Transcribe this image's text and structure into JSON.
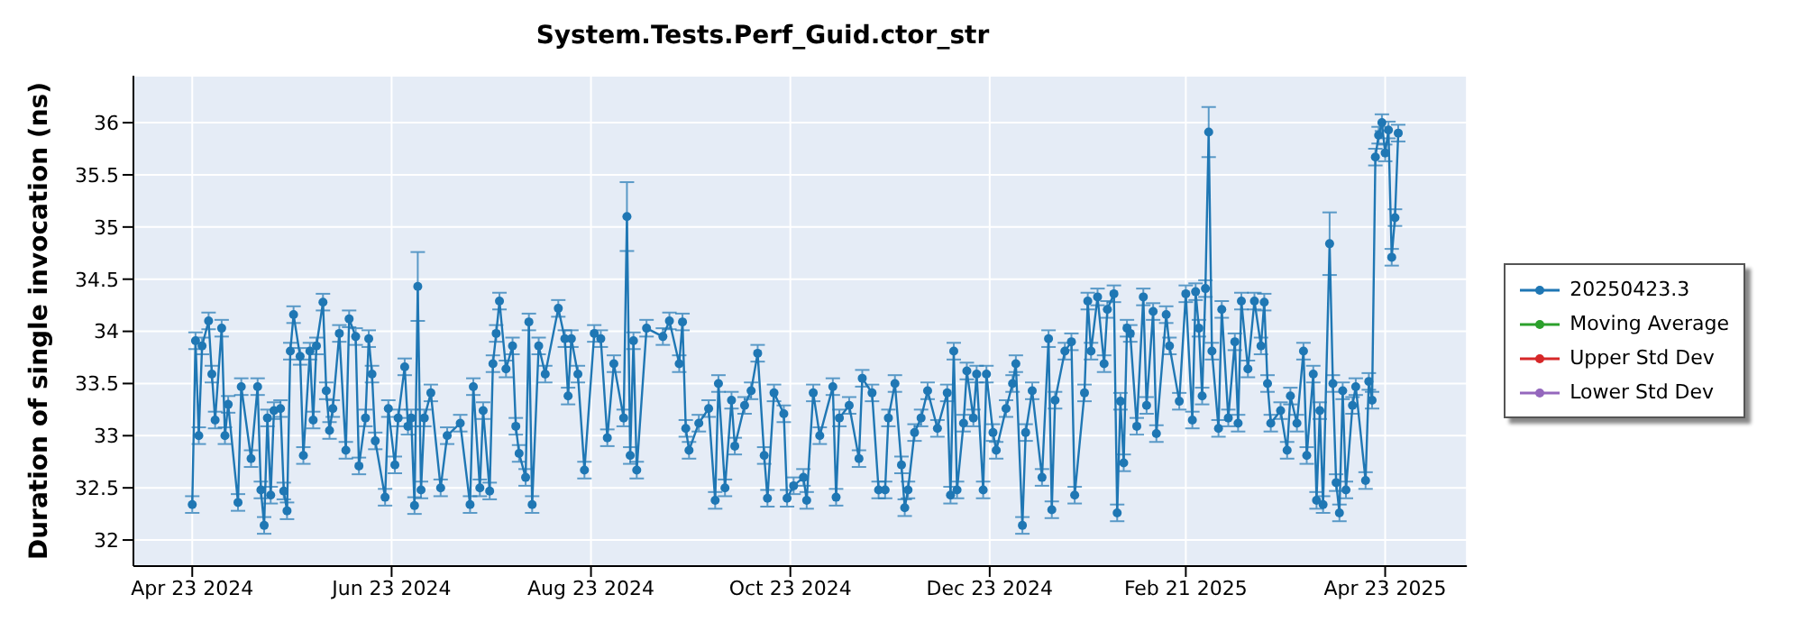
{
  "chart_data": {
    "type": "line",
    "title": "System.Tests.Perf_Guid.ctor_str",
    "ylabel": "Duration of single invocation (ns)",
    "x": [
      "2024-04-23",
      "2024-04-24",
      "2024-04-25",
      "2024-04-26",
      "2024-04-28",
      "2024-04-29",
      "2024-04-30",
      "2024-05-02",
      "2024-05-03",
      "2024-05-04",
      "2024-05-07",
      "2024-05-08",
      "2024-05-11",
      "2024-05-13",
      "2024-05-14",
      "2024-05-15",
      "2024-05-16",
      "2024-05-17",
      "2024-05-18",
      "2024-05-20",
      "2024-05-21",
      "2024-05-22",
      "2024-05-23",
      "2024-05-24",
      "2024-05-26",
      "2024-05-27",
      "2024-05-29",
      "2024-05-30",
      "2024-05-31",
      "2024-06-02",
      "2024-06-03",
      "2024-06-04",
      "2024-06-05",
      "2024-06-07",
      "2024-06-09",
      "2024-06-10",
      "2024-06-12",
      "2024-06-13",
      "2024-06-15",
      "2024-06-16",
      "2024-06-17",
      "2024-06-18",
      "2024-06-21",
      "2024-06-22",
      "2024-06-24",
      "2024-06-25",
      "2024-06-27",
      "2024-06-28",
      "2024-06-29",
      "2024-06-30",
      "2024-07-01",
      "2024-07-02",
      "2024-07-03",
      "2024-07-05",
      "2024-07-08",
      "2024-07-10",
      "2024-07-14",
      "2024-07-17",
      "2024-07-18",
      "2024-07-20",
      "2024-07-21",
      "2024-07-23",
      "2024-07-24",
      "2024-07-25",
      "2024-07-26",
      "2024-07-28",
      "2024-07-30",
      "2024-07-31",
      "2024-08-01",
      "2024-08-03",
      "2024-08-04",
      "2024-08-05",
      "2024-08-07",
      "2024-08-09",
      "2024-08-13",
      "2024-08-15",
      "2024-08-16",
      "2024-08-17",
      "2024-08-19",
      "2024-08-21",
      "2024-08-24",
      "2024-08-26",
      "2024-08-28",
      "2024-08-30",
      "2024-09-02",
      "2024-09-03",
      "2024-09-04",
      "2024-09-05",
      "2024-09-06",
      "2024-09-09",
      "2024-09-14",
      "2024-09-16",
      "2024-09-19",
      "2024-09-20",
      "2024-09-21",
      "2024-09-22",
      "2024-09-25",
      "2024-09-28",
      "2024-09-30",
      "2024-10-01",
      "2024-10-03",
      "2024-10-05",
      "2024-10-06",
      "2024-10-09",
      "2024-10-11",
      "2024-10-13",
      "2024-10-15",
      "2024-10-16",
      "2024-10-18",
      "2024-10-21",
      "2024-10-22",
      "2024-10-24",
      "2024-10-27",
      "2024-10-28",
      "2024-10-30",
      "2024-11-01",
      "2024-11-05",
      "2024-11-06",
      "2024-11-07",
      "2024-11-10",
      "2024-11-13",
      "2024-11-14",
      "2024-11-17",
      "2024-11-19",
      "2024-11-21",
      "2024-11-22",
      "2024-11-24",
      "2024-11-26",
      "2024-11-27",
      "2024-11-28",
      "2024-11-30",
      "2024-12-02",
      "2024-12-04",
      "2024-12-07",
      "2024-12-10",
      "2024-12-11",
      "2024-12-12",
      "2024-12-13",
      "2024-12-15",
      "2024-12-16",
      "2024-12-18",
      "2024-12-19",
      "2024-12-21",
      "2024-12-22",
      "2024-12-24",
      "2024-12-25",
      "2024-12-28",
      "2024-12-30",
      "2024-12-31",
      "2025-01-02",
      "2025-01-03",
      "2025-01-05",
      "2025-01-08",
      "2025-01-10",
      "2025-01-11",
      "2025-01-12",
      "2025-01-15",
      "2025-01-17",
      "2025-01-18",
      "2025-01-21",
      "2025-01-22",
      "2025-01-23",
      "2025-01-25",
      "2025-01-27",
      "2025-01-28",
      "2025-01-30",
      "2025-01-31",
      "2025-02-01",
      "2025-02-02",
      "2025-02-03",
      "2025-02-04",
      "2025-02-06",
      "2025-02-08",
      "2025-02-09",
      "2025-02-11",
      "2025-02-12",
      "2025-02-15",
      "2025-02-16",
      "2025-02-19",
      "2025-02-21",
      "2025-02-23",
      "2025-02-24",
      "2025-02-25",
      "2025-02-26",
      "2025-02-27",
      "2025-02-28",
      "2025-03-01",
      "2025-03-03",
      "2025-03-04",
      "2025-03-06",
      "2025-03-08",
      "2025-03-09",
      "2025-03-10",
      "2025-03-12",
      "2025-03-14",
      "2025-03-16",
      "2025-03-17",
      "2025-03-18",
      "2025-03-19",
      "2025-03-22",
      "2025-03-24",
      "2025-03-25",
      "2025-03-27",
      "2025-03-29",
      "2025-03-30",
      "2025-04-01",
      "2025-04-02",
      "2025-04-03",
      "2025-04-04",
      "2025-04-06",
      "2025-04-07",
      "2025-04-08",
      "2025-04-09",
      "2025-04-10",
      "2025-04-11",
      "2025-04-13",
      "2025-04-14",
      "2025-04-17",
      "2025-04-18",
      "2025-04-19",
      "2025-04-20",
      "2025-04-21",
      "2025-04-22",
      "2025-04-23",
      "2025-04-24",
      "2025-04-25",
      "2025-04-26",
      "2025-04-27"
    ],
    "series": [
      {
        "name": "20250423.3",
        "color": "#1f77b4",
        "values": [
          32.34,
          33.91,
          33.0,
          33.86,
          34.1,
          33.59,
          33.15,
          34.03,
          33.0,
          33.3,
          32.36,
          33.47,
          32.78,
          33.47,
          32.48,
          32.14,
          33.17,
          32.43,
          33.24,
          33.26,
          32.47,
          32.28,
          33.81,
          34.16,
          33.76,
          32.81,
          33.81,
          33.15,
          33.86,
          34.28,
          33.43,
          33.05,
          33.26,
          33.98,
          32.86,
          34.12,
          33.95,
          32.71,
          33.17,
          33.93,
          33.59,
          32.95,
          32.41,
          33.26,
          32.72,
          33.17,
          33.66,
          33.09,
          33.17,
          32.33,
          34.43,
          32.48,
          33.17,
          33.41,
          32.5,
          33.0,
          33.12,
          32.34,
          33.47,
          32.5,
          33.24,
          32.47,
          33.69,
          33.98,
          34.29,
          33.64,
          33.86,
          33.09,
          32.83,
          32.6,
          34.09,
          32.34,
          33.86,
          33.59,
          34.22,
          33.93,
          33.38,
          33.93,
          33.59,
          32.67,
          33.98,
          33.93,
          32.98,
          33.69,
          33.17,
          35.1,
          32.81,
          33.91,
          32.67,
          34.03,
          33.95,
          34.1,
          33.69,
          34.09,
          33.07,
          32.86,
          33.12,
          33.26,
          32.38,
          33.5,
          32.5,
          33.34,
          32.9,
          33.29,
          33.43,
          33.79,
          32.81,
          32.4,
          33.41,
          33.21,
          32.4,
          32.52,
          32.6,
          32.38,
          33.41,
          33.0,
          33.47,
          32.41,
          33.17,
          33.29,
          32.78,
          33.55,
          33.41,
          32.48,
          32.48,
          33.17,
          33.5,
          32.72,
          32.31,
          32.48,
          33.03,
          33.17,
          33.43,
          33.07,
          33.41,
          32.43,
          33.81,
          32.48,
          33.12,
          33.62,
          33.17,
          33.59,
          32.48,
          33.59,
          33.03,
          32.86,
          33.26,
          33.5,
          33.69,
          32.14,
          33.03,
          33.43,
          32.6,
          33.93,
          32.29,
          33.34,
          33.81,
          33.9,
          32.43,
          33.41,
          34.29,
          33.81,
          34.33,
          33.69,
          34.21,
          34.36,
          32.26,
          33.33,
          32.74,
          34.03,
          33.98,
          33.09,
          34.33,
          33.29,
          34.19,
          33.02,
          34.16,
          33.86,
          33.33,
          34.36,
          33.15,
          34.38,
          34.03,
          33.38,
          34.41,
          35.91,
          33.81,
          33.07,
          34.21,
          33.17,
          33.9,
          33.12,
          34.29,
          33.64,
          34.29,
          33.86,
          34.28,
          33.5,
          33.12,
          33.24,
          32.86,
          33.38,
          33.12,
          33.81,
          32.81,
          33.59,
          32.38,
          33.24,
          32.34,
          34.84,
          33.5,
          32.55,
          32.26,
          33.43,
          32.48,
          33.29,
          33.47,
          32.57,
          33.52,
          33.34,
          35.67,
          35.88,
          36.0,
          35.71,
          35.93,
          34.71,
          35.09,
          35.9
        ],
        "errors": [
          0.08,
          0.08,
          0.08,
          0.08,
          0.08,
          0.08,
          0.08,
          0.08,
          0.08,
          0.08,
          0.08,
          0.08,
          0.08,
          0.08,
          0.08,
          0.08,
          0.08,
          0.08,
          0.08,
          0.08,
          0.08,
          0.08,
          0.08,
          0.08,
          0.08,
          0.08,
          0.08,
          0.08,
          0.08,
          0.08,
          0.08,
          0.08,
          0.08,
          0.08,
          0.08,
          0.08,
          0.08,
          0.08,
          0.08,
          0.08,
          0.08,
          0.08,
          0.08,
          0.08,
          0.08,
          0.08,
          0.08,
          0.08,
          0.08,
          0.08,
          0.33,
          0.08,
          0.08,
          0.08,
          0.08,
          0.08,
          0.08,
          0.08,
          0.08,
          0.08,
          0.08,
          0.08,
          0.08,
          0.08,
          0.08,
          0.08,
          0.08,
          0.08,
          0.08,
          0.08,
          0.08,
          0.08,
          0.08,
          0.08,
          0.08,
          0.08,
          0.08,
          0.08,
          0.08,
          0.08,
          0.08,
          0.08,
          0.08,
          0.08,
          0.08,
          0.33,
          0.08,
          0.08,
          0.08,
          0.08,
          0.08,
          0.08,
          0.08,
          0.08,
          0.08,
          0.08,
          0.08,
          0.08,
          0.08,
          0.08,
          0.08,
          0.08,
          0.08,
          0.08,
          0.08,
          0.08,
          0.08,
          0.08,
          0.08,
          0.08,
          0.08,
          0.08,
          0.08,
          0.08,
          0.08,
          0.08,
          0.08,
          0.08,
          0.08,
          0.08,
          0.08,
          0.08,
          0.08,
          0.08,
          0.08,
          0.08,
          0.08,
          0.08,
          0.08,
          0.08,
          0.08,
          0.08,
          0.08,
          0.08,
          0.08,
          0.08,
          0.08,
          0.08,
          0.08,
          0.08,
          0.08,
          0.08,
          0.08,
          0.08,
          0.08,
          0.08,
          0.08,
          0.08,
          0.08,
          0.08,
          0.08,
          0.08,
          0.08,
          0.08,
          0.08,
          0.08,
          0.08,
          0.08,
          0.08,
          0.08,
          0.08,
          0.08,
          0.08,
          0.08,
          0.08,
          0.08,
          0.08,
          0.08,
          0.08,
          0.08,
          0.08,
          0.08,
          0.08,
          0.08,
          0.08,
          0.08,
          0.08,
          0.08,
          0.08,
          0.08,
          0.08,
          0.08,
          0.08,
          0.08,
          0.08,
          0.24,
          0.08,
          0.08,
          0.08,
          0.08,
          0.08,
          0.08,
          0.08,
          0.08,
          0.08,
          0.08,
          0.08,
          0.08,
          0.08,
          0.08,
          0.08,
          0.08,
          0.08,
          0.08,
          0.08,
          0.08,
          0.08,
          0.08,
          0.08,
          0.3,
          0.08,
          0.08,
          0.08,
          0.08,
          0.08,
          0.08,
          0.08,
          0.08,
          0.08,
          0.08,
          0.08,
          0.08,
          0.08,
          0.08,
          0.08,
          0.08,
          0.08,
          0.08
        ]
      },
      {
        "name": "Moving Average",
        "color": "#2ca02c",
        "values": [
          null,
          null,
          null,
          null,
          null,
          null,
          null,
          null,
          null,
          null,
          null,
          null,
          null,
          null,
          null,
          null,
          null,
          null,
          null,
          null,
          null,
          null,
          null,
          null,
          null,
          null,
          null,
          null,
          null,
          null,
          null,
          null,
          null,
          null,
          null,
          null,
          null,
          null,
          null,
          null,
          null,
          null,
          null,
          null,
          null,
          null,
          null,
          null,
          null,
          null,
          null,
          null,
          null,
          null,
          null,
          null,
          null,
          null,
          null,
          null,
          null,
          null,
          null,
          null,
          null,
          null,
          null,
          null,
          null,
          null,
          null,
          null,
          null,
          null,
          null,
          null,
          null,
          null,
          null,
          null,
          null,
          null,
          null,
          null,
          null,
          null,
          null,
          null,
          null,
          null,
          null,
          null,
          null,
          null,
          null,
          null,
          null,
          null,
          null,
          null,
          null,
          null,
          null,
          null,
          null,
          null,
          null,
          null,
          null,
          null,
          null,
          null,
          null,
          null,
          null,
          null,
          null,
          null,
          null,
          null,
          null,
          null,
          null,
          null,
          null,
          null,
          null,
          null,
          null,
          null,
          null,
          null,
          null,
          null,
          null,
          null,
          null,
          null,
          null,
          null,
          null,
          null,
          null,
          null,
          null,
          null,
          null,
          null,
          null,
          null,
          null,
          null,
          null,
          null,
          null,
          null,
          null,
          null,
          null,
          null,
          null,
          null,
          null,
          null,
          null,
          null,
          null,
          null,
          null,
          null,
          null,
          null,
          null,
          null,
          null,
          null,
          null,
          null,
          null,
          null,
          null,
          null,
          null,
          null,
          null,
          null,
          null,
          null,
          null,
          null,
          null,
          null,
          null,
          null,
          null,
          null,
          null,
          null,
          null,
          null,
          null,
          null,
          null,
          null,
          null,
          null,
          null,
          null,
          null,
          null,
          null,
          null,
          null,
          null,
          null,
          null,
          null,
          null,
          null,
          null,
          null,
          null,
          null,
          null,
          null,
          null,
          null,
          null
        ]
      },
      {
        "name": "Upper Std Dev",
        "color": "#d62728",
        "values": [
          null,
          null,
          null,
          null,
          null,
          null,
          null,
          null,
          null,
          null,
          null,
          null,
          null,
          null,
          null,
          null,
          null,
          null,
          null,
          null,
          null,
          null,
          null,
          null,
          null,
          null,
          null,
          null,
          null,
          null,
          null,
          null,
          null,
          null,
          null,
          null,
          null,
          null,
          null,
          null,
          null,
          null,
          null,
          null,
          null,
          null,
          null,
          null,
          null,
          null,
          null,
          null,
          null,
          null,
          null,
          null,
          null,
          null,
          null,
          null,
          null,
          null,
          null,
          null,
          null,
          null,
          null,
          null,
          null,
          null,
          null,
          null,
          null,
          null,
          null,
          null,
          null,
          null,
          null,
          null,
          null,
          null,
          null,
          null,
          null,
          null,
          null,
          null,
          null,
          null,
          null,
          null,
          null,
          null,
          null,
          null,
          null,
          null,
          null,
          null,
          null,
          null,
          null,
          null,
          null,
          null,
          null,
          null,
          null,
          null,
          null,
          null,
          null,
          null,
          null,
          null,
          null,
          null,
          null,
          null,
          null,
          null,
          null,
          null,
          null,
          null,
          null,
          null,
          null,
          null,
          null,
          null,
          null,
          null,
          null,
          null,
          null,
          null,
          null,
          null,
          null,
          null,
          null,
          null,
          null,
          null,
          null,
          null,
          null,
          null,
          null,
          null,
          null,
          null,
          null,
          null,
          null,
          null,
          null,
          null,
          null,
          null,
          null,
          null,
          null,
          null,
          null,
          null,
          null,
          null,
          null,
          null,
          null,
          null,
          null,
          null,
          null,
          null,
          null,
          null,
          null,
          null,
          null,
          null,
          null,
          null,
          null,
          null,
          null,
          null,
          null,
          null,
          null,
          null,
          null,
          null,
          null,
          null,
          null,
          null,
          null,
          null,
          null,
          null,
          null,
          null,
          null,
          null,
          null,
          null,
          null,
          null,
          null,
          null,
          null,
          null,
          null,
          null,
          null,
          null,
          null,
          null,
          null,
          null,
          null,
          null,
          null,
          null
        ]
      },
      {
        "name": "Lower Std Dev",
        "color": "#9467bd",
        "values": [
          null,
          null,
          null,
          null,
          null,
          null,
          null,
          null,
          null,
          null,
          null,
          null,
          null,
          null,
          null,
          null,
          null,
          null,
          null,
          null,
          null,
          null,
          null,
          null,
          null,
          null,
          null,
          null,
          null,
          null,
          null,
          null,
          null,
          null,
          null,
          null,
          null,
          null,
          null,
          null,
          null,
          null,
          null,
          null,
          null,
          null,
          null,
          null,
          null,
          null,
          null,
          null,
          null,
          null,
          null,
          null,
          null,
          null,
          null,
          null,
          null,
          null,
          null,
          null,
          null,
          null,
          null,
          null,
          null,
          null,
          null,
          null,
          null,
          null,
          null,
          null,
          null,
          null,
          null,
          null,
          null,
          null,
          null,
          null,
          null,
          null,
          null,
          null,
          null,
          null,
          null,
          null,
          null,
          null,
          null,
          null,
          null,
          null,
          null,
          null,
          null,
          null,
          null,
          null,
          null,
          null,
          null,
          null,
          null,
          null,
          null,
          null,
          null,
          null,
          null,
          null,
          null,
          null,
          null,
          null,
          null,
          null,
          null,
          null,
          null,
          null,
          null,
          null,
          null,
          null,
          null,
          null,
          null,
          null,
          null,
          null,
          null,
          null,
          null,
          null,
          null,
          null,
          null,
          null,
          null,
          null,
          null,
          null,
          null,
          null,
          null,
          null,
          null,
          null,
          null,
          null,
          null,
          null,
          null,
          null,
          null,
          null,
          null,
          null,
          null,
          null,
          null,
          null,
          null,
          null,
          null,
          null,
          null,
          null,
          null,
          null,
          null,
          null,
          null,
          null,
          null,
          null,
          null,
          null,
          null,
          null,
          null,
          null,
          null,
          null,
          null,
          null,
          null,
          null,
          null,
          null,
          null,
          null,
          null,
          null,
          null,
          null,
          null,
          null,
          null,
          null,
          null,
          null,
          null,
          null,
          null,
          null,
          null,
          null,
          null,
          null,
          null,
          null,
          null,
          null,
          null,
          null,
          null,
          null,
          null,
          null,
          null,
          null
        ]
      }
    ],
    "xlim": [
      "2024-04-05",
      "2025-05-18"
    ],
    "xticks": [
      {
        "value": "2024-04-23",
        "label": "Apr 23 2024"
      },
      {
        "value": "2024-06-23",
        "label": "Jun 23 2024"
      },
      {
        "value": "2024-08-23",
        "label": "Aug 23 2024"
      },
      {
        "value": "2024-10-23",
        "label": "Oct 23 2024"
      },
      {
        "value": "2024-12-23",
        "label": "Dec 23 2024"
      },
      {
        "value": "2025-02-21",
        "label": "Feb 21 2025"
      },
      {
        "value": "2025-04-23",
        "label": "Apr 23 2025"
      }
    ],
    "ylim": [
      31.75,
      36.45
    ],
    "yticks": [
      32,
      32.5,
      33,
      33.5,
      34,
      34.5,
      35,
      35.5,
      36
    ],
    "grid": true,
    "legend": "right",
    "marker": "circle",
    "line_style": "solid"
  }
}
